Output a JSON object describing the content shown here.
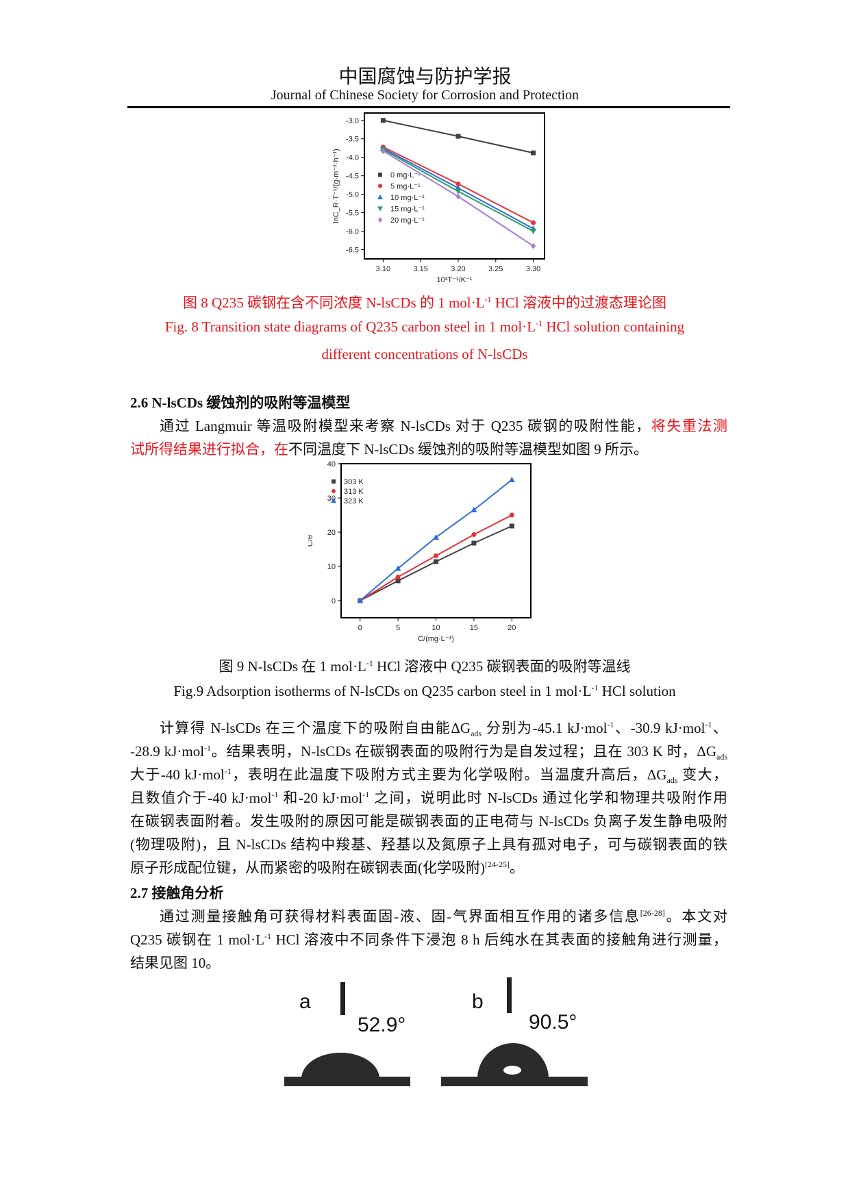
{
  "header": {
    "title_cn": "中国腐蚀与防护学报",
    "title_en": "Journal of Chinese Society for Corrosion and Protection"
  },
  "fig8": {
    "caption_cn": [
      {
        "t": "图 8 Q235 碳钢在含不同浓度 N-lsCDs 的 1 mol·L"
      },
      {
        "t": "-1",
        "sup": true
      },
      {
        "t": " HCl 溶液中的过渡态理论图"
      }
    ],
    "caption_en1": [
      {
        "t": "Fig. 8 Transition state diagrams of Q235 carbon steel in 1 mol·L"
      },
      {
        "t": "-1",
        "sup": true
      },
      {
        "t": " HCl solution containing"
      }
    ],
    "caption_en2": [
      {
        "t": "different concentrations of N-lsCDs"
      }
    ]
  },
  "section26": {
    "heading": "2.6    N-lsCDs 缓蚀剂的吸附等温模型",
    "lines": [
      [
        {
          "t": "通过 Langmuir 等温吸附模型来考察 N-lsCDs 对于 Q235 碳钢的吸附性能，"
        },
        {
          "t": "将失重法测",
          "red": true
        }
      ],
      [
        {
          "t": "试所得结果进行拟合，在",
          "red": true
        },
        {
          "t": "不同温度下 N-lsCDs 缓蚀剂的吸附等温模型如图 9 所示。"
        }
      ]
    ]
  },
  "fig9": {
    "caption_cn": [
      {
        "t": "图 9 N-lsCDs 在 1 mol·L"
      },
      {
        "t": "-1",
        "sup": true
      },
      {
        "t": " HCl 溶液中 Q235 碳钢表面的吸附等温线"
      }
    ],
    "caption_en": [
      {
        "t": "Fig.9 Adsorption isotherms of N-lsCDs on Q235 carbon steel in 1 mol·L"
      },
      {
        "t": "-1",
        "sup": true
      },
      {
        "t": " HCl solution"
      }
    ]
  },
  "para2": [
    [
      {
        "t": "计算得 N-lsCDs 在三个温度下的吸附自由能ΔG"
      },
      {
        "t": "ads",
        "sub": true
      },
      {
        "t": " 分别为-45.1 kJ·mol"
      },
      {
        "t": "-1",
        "sup": true
      },
      {
        "t": "、-30.9 kJ·mol"
      },
      {
        "t": "-1",
        "sup": true
      },
      {
        "t": "、"
      }
    ],
    [
      {
        "t": "-28.9 kJ·mol"
      },
      {
        "t": "-1",
        "sup": true
      },
      {
        "t": "。结果表明，N-lsCDs 在碳钢表面的吸附行为是自发过程；且在 303 K 时，ΔG"
      },
      {
        "t": "ads",
        "sub": true
      }
    ],
    [
      {
        "t": "大于-40 kJ·mol"
      },
      {
        "t": "-1",
        "sup": true
      },
      {
        "t": "，表明在此温度下吸附方式主要为化学吸附。当温度升高后，ΔG"
      },
      {
        "t": "ads",
        "sub": true
      },
      {
        "t": " 变大，"
      }
    ],
    [
      {
        "t": "且数值介于-40 kJ·mol"
      },
      {
        "t": "-1",
        "sup": true
      },
      {
        "t": " 和-20 kJ·mol"
      },
      {
        "t": "-1",
        "sup": true
      },
      {
        "t": " 之间，说明此时 N-lsCDs 通过化学和物理共吸附作用"
      }
    ],
    [
      {
        "t": "在碳钢表面附着。发生吸附的原因可能是碳钢表面的正电荷与 N-lsCDs 负离子发生静电吸附"
      }
    ],
    [
      {
        "t": "(物理吸附)，且 N-lsCDs 结构中羧基、羟基以及氮原子上具有孤对电子，可与碳钢表面的铁"
      }
    ],
    [
      {
        "t": "原子形成配位键，从而紧密的吸附在碳钢表面(化学吸附)"
      },
      {
        "t": "[24-25]",
        "sup": true
      },
      {
        "t": "。"
      }
    ]
  ],
  "section27": {
    "heading": "2.7  接触角分析",
    "lines": [
      [
        {
          "t": "通过测量接触角可获得材料表面固-液、固-气界面相互作用的诸多信息"
        },
        {
          "t": "[26-28]",
          "sup": true
        },
        {
          "t": "。本文对"
        }
      ],
      [
        {
          "t": "Q235 碳钢在 1 mol·L"
        },
        {
          "t": "-1",
          "sup": true
        },
        {
          "t": " HCl  溶液中不同条件下浸泡 8 h 后纯水在其表面的接触角进行测量，"
        }
      ],
      [
        {
          "t": "结果见图 10。"
        }
      ]
    ]
  },
  "fig10": {
    "panels": [
      {
        "label": "a",
        "angle": "52.9°"
      },
      {
        "label": "b",
        "angle": "90.5°"
      }
    ]
  },
  "chart_data": [
    {
      "type": "line",
      "xlabel": "10³T⁻¹/K⁻¹",
      "ylabel": "lnC_R·T⁻¹/(g·m⁻²·h⁻¹)",
      "x": [
        3.1,
        3.2,
        3.3
      ],
      "xticks": [
        "3.10",
        "3.15",
        "3.20",
        "3.25",
        "3.30"
      ],
      "xlim": [
        3.075,
        3.315
      ],
      "yticks": [
        "-3.0",
        "-3.5",
        "-4.0",
        "-4.5",
        "-5.0",
        "-5.5",
        "-6.0",
        "-6.5"
      ],
      "ylim": [
        -6.75,
        -2.8
      ],
      "legend": "center-left",
      "series": [
        {
          "name": "0 mg·L⁻¹",
          "values": [
            -3.0,
            -3.43,
            -3.88
          ],
          "color": "#404040",
          "marker": "square"
        },
        {
          "name": "5 mg·L⁻¹",
          "values": [
            -3.72,
            -4.72,
            -5.77
          ],
          "color": "#e8313a",
          "marker": "circle"
        },
        {
          "name": "10 mg·L⁻¹",
          "values": [
            -3.76,
            -4.83,
            -5.93
          ],
          "color": "#2a6fd6",
          "marker": "triangle"
        },
        {
          "name": "15 mg·L⁻¹",
          "values": [
            -3.79,
            -4.92,
            -6.0
          ],
          "color": "#2e9e6a",
          "marker": "triangle-down"
        },
        {
          "name": "20 mg·L⁻¹",
          "values": [
            -3.83,
            -5.06,
            -6.4
          ],
          "color": "#a67ed6",
          "marker": "diamond"
        }
      ]
    },
    {
      "type": "line",
      "xlabel": "C/(mg·L⁻¹)",
      "ylabel": "C/θ",
      "x": [
        0,
        5,
        10,
        15,
        20
      ],
      "xticks": [
        "0",
        "5",
        "10",
        "15",
        "20"
      ],
      "xlim": [
        -2.5,
        22.5
      ],
      "yticks": [
        "0",
        "10",
        "20",
        "30",
        "40"
      ],
      "ylim": [
        -5,
        40
      ],
      "legend": "top-left",
      "series": [
        {
          "name": "303 K",
          "values": [
            0,
            5.8,
            11.4,
            16.8,
            21.8
          ],
          "color": "#404040",
          "marker": "square"
        },
        {
          "name": "313 K",
          "values": [
            0,
            6.9,
            13.1,
            19.3,
            25.0
          ],
          "color": "#e8313a",
          "marker": "circle"
        },
        {
          "name": "323 K",
          "values": [
            0,
            9.4,
            18.5,
            26.5,
            35.3
          ],
          "color": "#2a6fd6",
          "marker": "triangle"
        }
      ]
    }
  ]
}
